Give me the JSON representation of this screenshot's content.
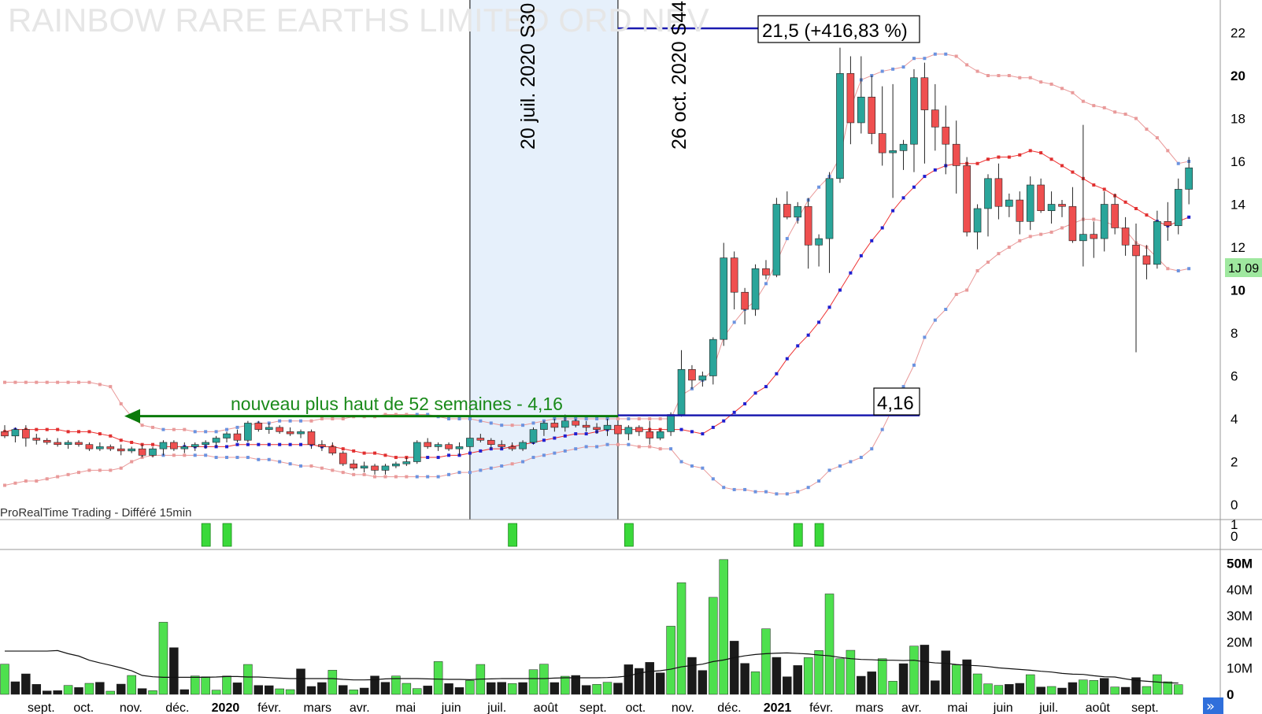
{
  "chart_data": {
    "type": "candlestick",
    "title": "RAINBOW RARE EARTHS LIMITED ORD NPV",
    "source": "ProRealTime Trading - Différé 15min",
    "price_axis": {
      "ylim": [
        0,
        23
      ],
      "ticks": [
        "22",
        "20",
        "18",
        "16",
        "14",
        "12",
        "10",
        "8",
        "6",
        "4",
        "2",
        "0"
      ],
      "bold_ticks": [
        "20",
        "10"
      ]
    },
    "last_price_tag": "1J 09",
    "volume_axis": {
      "ylim": [
        0,
        52
      ],
      "ticks": [
        "50M",
        "40M",
        "30M",
        "20M",
        "10M",
        "0"
      ]
    },
    "signal_axis": {
      "ticks": [
        "1",
        "0"
      ]
    },
    "x_labels": [
      "sept.",
      "oct.",
      "nov.",
      "déc.",
      "2020",
      "févr.",
      "mars",
      "avr.",
      "mai",
      "juin",
      "juil.",
      "août",
      "sept.",
      "oct.",
      "nov.",
      "déc.",
      "2021",
      "févr.",
      "mars",
      "avr.",
      "mai",
      "juin",
      "juil.",
      "août",
      "sept."
    ],
    "bold_x_labels": [
      "2020",
      "2021"
    ],
    "vlines": [
      {
        "label": "20 juil. 2020 S30",
        "week": 44
      },
      {
        "label": "26 oct. 2020 S44",
        "week": 58
      }
    ],
    "annotations": {
      "breakout": "nouveau plus haut de 52 semaines - 4,16",
      "level_low": "4,16",
      "level_high": "21,5 (+416,83 %)"
    },
    "candles": [
      [
        3.4,
        3.7,
        3.1,
        3.2
      ],
      [
        3.2,
        3.6,
        2.9,
        3.5
      ],
      [
        3.5,
        3.7,
        2.7,
        3.1
      ],
      [
        3.1,
        3.3,
        2.8,
        3.0
      ],
      [
        3.0,
        3.1,
        2.8,
        2.9
      ],
      [
        2.9,
        3.1,
        2.7,
        2.8
      ],
      [
        2.8,
        3.0,
        2.6,
        2.9
      ],
      [
        2.9,
        3.0,
        2.7,
        2.8
      ],
      [
        2.8,
        2.9,
        2.5,
        2.6
      ],
      [
        2.6,
        2.9,
        2.5,
        2.7
      ],
      [
        2.7,
        2.8,
        2.5,
        2.6
      ],
      [
        2.6,
        2.8,
        2.3,
        2.5
      ],
      [
        2.5,
        2.7,
        2.4,
        2.6
      ],
      [
        2.6,
        2.8,
        2.2,
        2.3
      ],
      [
        2.3,
        2.7,
        2.2,
        2.6
      ],
      [
        2.6,
        3.0,
        2.3,
        2.9
      ],
      [
        2.9,
        3.0,
        2.5,
        2.6
      ],
      [
        2.6,
        2.9,
        2.4,
        2.7
      ],
      [
        2.7,
        2.9,
        2.5,
        2.8
      ],
      [
        2.8,
        3.0,
        2.6,
        2.9
      ],
      [
        2.9,
        3.2,
        2.7,
        3.1
      ],
      [
        3.1,
        3.4,
        2.9,
        3.3
      ],
      [
        3.3,
        3.5,
        2.9,
        3.0
      ],
      [
        3.0,
        3.9,
        2.9,
        3.8
      ],
      [
        3.8,
        3.9,
        3.4,
        3.5
      ],
      [
        3.5,
        3.8,
        3.3,
        3.6
      ],
      [
        3.6,
        3.7,
        3.3,
        3.4
      ],
      [
        3.4,
        3.6,
        3.2,
        3.3
      ],
      [
        3.3,
        3.5,
        3.1,
        3.4
      ],
      [
        3.4,
        3.5,
        2.6,
        2.8
      ],
      [
        2.8,
        3.0,
        2.5,
        2.7
      ],
      [
        2.7,
        2.9,
        2.3,
        2.4
      ],
      [
        2.4,
        2.5,
        1.8,
        1.9
      ],
      [
        1.9,
        2.1,
        1.6,
        1.7
      ],
      [
        1.7,
        2.0,
        1.5,
        1.8
      ],
      [
        1.8,
        1.9,
        1.4,
        1.6
      ],
      [
        1.6,
        1.9,
        1.4,
        1.8
      ],
      [
        1.8,
        2.0,
        1.7,
        1.9
      ],
      [
        1.9,
        2.2,
        1.8,
        2.0
      ],
      [
        2.0,
        3.0,
        1.9,
        2.9
      ],
      [
        2.9,
        3.1,
        2.6,
        2.7
      ],
      [
        2.7,
        2.9,
        2.5,
        2.8
      ],
      [
        2.8,
        2.9,
        2.5,
        2.6
      ],
      [
        2.6,
        2.9,
        2.3,
        2.7
      ],
      [
        2.7,
        3.3,
        2.5,
        3.1
      ],
      [
        3.1,
        3.3,
        2.9,
        3.0
      ],
      [
        3.0,
        3.1,
        2.6,
        2.8
      ],
      [
        2.8,
        3.0,
        2.6,
        2.7
      ],
      [
        2.7,
        2.9,
        2.5,
        2.6
      ],
      [
        2.6,
        3.0,
        2.5,
        2.9
      ],
      [
        2.9,
        3.6,
        2.8,
        3.5
      ],
      [
        3.5,
        3.9,
        3.2,
        3.8
      ],
      [
        3.8,
        4.0,
        3.4,
        3.6
      ],
      [
        3.6,
        4.2,
        3.4,
        3.9
      ],
      [
        3.9,
        4.0,
        3.6,
        3.7
      ],
      [
        3.7,
        3.9,
        3.4,
        3.6
      ],
      [
        3.6,
        3.8,
        3.3,
        3.5
      ],
      [
        3.5,
        4.0,
        3.2,
        3.7
      ],
      [
        3.7,
        3.8,
        3.1,
        3.3
      ],
      [
        3.3,
        3.7,
        3.0,
        3.6
      ],
      [
        3.6,
        3.7,
        3.2,
        3.4
      ],
      [
        3.4,
        3.9,
        2.8,
        3.1
      ],
      [
        3.1,
        3.5,
        3.0,
        3.4
      ],
      [
        3.4,
        4.3,
        3.2,
        4.2
      ],
      [
        4.2,
        7.2,
        4.1,
        6.3
      ],
      [
        6.3,
        6.5,
        5.4,
        5.8
      ],
      [
        5.8,
        6.2,
        5.5,
        6.0
      ],
      [
        6.0,
        7.8,
        5.6,
        7.7
      ],
      [
        7.7,
        12.2,
        7.4,
        11.5
      ],
      [
        11.5,
        11.8,
        9.1,
        9.9
      ],
      [
        9.9,
        10.1,
        8.4,
        9.1
      ],
      [
        9.1,
        11.2,
        8.8,
        11.0
      ],
      [
        11.0,
        11.4,
        10.5,
        10.7
      ],
      [
        10.7,
        14.3,
        10.6,
        14.0
      ],
      [
        14.0,
        14.6,
        13.3,
        13.4
      ],
      [
        13.4,
        14.1,
        13.1,
        13.9
      ],
      [
        13.9,
        14.3,
        11.0,
        12.1
      ],
      [
        12.1,
        12.6,
        11.1,
        12.4
      ],
      [
        12.4,
        15.5,
        10.8,
        15.2
      ],
      [
        15.2,
        21.3,
        15.0,
        20.1
      ],
      [
        20.1,
        20.9,
        16.8,
        17.8
      ],
      [
        17.8,
        20.9,
        17.3,
        19.0
      ],
      [
        19.0,
        20.0,
        16.8,
        17.3
      ],
      [
        17.3,
        19.5,
        15.8,
        16.4
      ],
      [
        16.4,
        19.6,
        14.3,
        16.5
      ],
      [
        16.5,
        17.0,
        15.6,
        16.8
      ],
      [
        16.8,
        20.3,
        15.5,
        19.9
      ],
      [
        19.9,
        20.6,
        15.9,
        18.4
      ],
      [
        18.4,
        19.6,
        16.5,
        17.6
      ],
      [
        17.6,
        18.6,
        15.4,
        16.8
      ],
      [
        16.8,
        17.9,
        14.5,
        15.8
      ],
      [
        15.8,
        16.2,
        12.5,
        12.7
      ],
      [
        12.7,
        14.0,
        11.9,
        13.8
      ],
      [
        13.8,
        15.4,
        12.5,
        15.2
      ],
      [
        15.2,
        15.9,
        13.3,
        13.9
      ],
      [
        13.9,
        14.5,
        13.4,
        14.2
      ],
      [
        14.2,
        14.6,
        12.6,
        13.2
      ],
      [
        13.2,
        15.3,
        12.8,
        14.9
      ],
      [
        14.9,
        15.2,
        13.6,
        13.7
      ],
      [
        13.7,
        14.6,
        13.1,
        14.0
      ],
      [
        14.0,
        14.2,
        13.4,
        13.9
      ],
      [
        13.9,
        14.8,
        12.2,
        12.3
      ],
      [
        12.3,
        17.7,
        11.1,
        12.6
      ],
      [
        12.6,
        13.2,
        11.5,
        12.4
      ],
      [
        12.4,
        14.6,
        11.8,
        14.0
      ],
      [
        14.0,
        14.5,
        12.6,
        12.9
      ],
      [
        12.9,
        13.4,
        11.6,
        12.1
      ],
      [
        12.1,
        13.1,
        7.1,
        11.6
      ],
      [
        11.6,
        12.1,
        10.5,
        11.2
      ],
      [
        11.2,
        13.7,
        11.0,
        13.2
      ],
      [
        13.2,
        14.1,
        12.3,
        13.0
      ],
      [
        13.0,
        15.2,
        12.6,
        14.7
      ],
      [
        14.7,
        16.2,
        14.0,
        15.7
      ]
    ],
    "bollinger": {
      "upper": [
        5.7,
        5.7,
        5.7,
        5.7,
        5.7,
        5.7,
        5.7,
        5.7,
        5.7,
        5.6,
        5.5,
        4.7,
        4.1,
        3.7,
        3.6,
        3.5,
        3.5,
        3.5,
        3.4,
        3.4,
        3.4,
        3.5,
        3.6,
        3.7,
        3.8,
        3.8,
        3.9,
        3.9,
        3.9,
        3.9,
        4.0,
        4.0,
        4.0,
        4.1,
        4.1,
        4.1,
        4.2,
        4.2,
        4.2,
        4.2,
        4.2,
        4.1,
        4.0,
        4.0,
        4.0,
        3.9,
        3.8,
        3.7,
        3.7,
        3.7,
        3.8,
        3.9,
        4.0,
        4.0,
        4.0,
        4.0,
        4.0,
        4.0,
        4.0,
        4.0,
        4.0,
        4.0,
        4.0,
        4.0,
        5.1,
        5.4,
        5.8,
        6.3,
        7.8,
        8.5,
        9.1,
        9.5,
        10.3,
        11.3,
        12.4,
        13.3,
        14.2,
        14.8,
        15.3,
        16.2,
        18.5,
        19.8,
        20.0,
        20.2,
        20.3,
        20.4,
        20.8,
        20.8,
        21.0,
        21.0,
        20.9,
        20.5,
        20.2,
        20.0,
        20.0,
        20.0,
        19.9,
        19.9,
        19.7,
        19.6,
        19.4,
        19.2,
        18.8,
        18.6,
        18.5,
        18.3,
        18.2,
        18.0,
        17.5,
        17.1,
        16.5,
        15.9,
        16.0
      ],
      "middle": [
        3.4,
        3.5,
        3.5,
        3.5,
        3.5,
        3.5,
        3.4,
        3.4,
        3.4,
        3.3,
        3.2,
        3.0,
        2.9,
        2.8,
        2.8,
        2.7,
        2.7,
        2.7,
        2.7,
        2.7,
        2.7,
        2.7,
        2.8,
        2.8,
        2.8,
        2.8,
        2.8,
        2.8,
        2.8,
        2.8,
        2.7,
        2.7,
        2.6,
        2.5,
        2.4,
        2.4,
        2.3,
        2.2,
        2.2,
        2.2,
        2.2,
        2.2,
        2.3,
        2.3,
        2.4,
        2.5,
        2.6,
        2.6,
        2.7,
        2.8,
        2.9,
        3.0,
        3.1,
        3.2,
        3.3,
        3.3,
        3.4,
        3.5,
        3.5,
        3.5,
        3.5,
        3.5,
        3.5,
        3.5,
        3.5,
        3.4,
        3.3,
        3.6,
        3.9,
        4.3,
        4.7,
        5.2,
        5.5,
        6.1,
        6.8,
        7.4,
        7.9,
        8.5,
        9.2,
        10.0,
        10.8,
        11.6,
        12.3,
        12.9,
        13.7,
        14.3,
        14.8,
        15.3,
        15.6,
        15.8,
        15.9,
        15.9,
        15.9,
        16.1,
        16.2,
        16.2,
        16.3,
        16.5,
        16.4,
        16.1,
        15.8,
        15.5,
        15.2,
        14.9,
        14.7,
        14.4,
        14.1,
        13.8,
        13.5,
        13.2,
        13.0,
        13.2,
        13.4
      ],
      "lower": [
        0.9,
        1.0,
        1.1,
        1.1,
        1.2,
        1.3,
        1.4,
        1.5,
        1.6,
        1.6,
        1.6,
        1.7,
        2.0,
        2.2,
        2.3,
        2.3,
        2.3,
        2.3,
        2.3,
        2.3,
        2.2,
        2.2,
        2.2,
        2.2,
        2.1,
        2.1,
        2.0,
        1.9,
        1.8,
        1.8,
        1.7,
        1.6,
        1.5,
        1.4,
        1.4,
        1.3,
        1.3,
        1.3,
        1.3,
        1.3,
        1.3,
        1.3,
        1.4,
        1.5,
        1.5,
        1.6,
        1.7,
        1.8,
        1.9,
        2.0,
        2.2,
        2.3,
        2.4,
        2.5,
        2.6,
        2.7,
        2.7,
        2.8,
        2.8,
        2.8,
        2.7,
        2.7,
        2.6,
        2.6,
        2.0,
        1.8,
        1.7,
        1.2,
        0.8,
        0.7,
        0.7,
        0.6,
        0.6,
        0.5,
        0.5,
        0.6,
        0.8,
        1.1,
        1.6,
        1.8,
        2.0,
        2.2,
        2.6,
        3.5,
        4.5,
        5.5,
        6.5,
        7.8,
        8.6,
        9.1,
        9.8,
        10.0,
        10.9,
        11.3,
        11.7,
        12.0,
        12.3,
        12.5,
        12.6,
        12.7,
        12.9,
        13.1,
        13.3,
        13.3,
        13.2,
        13.0,
        12.8,
        12.2,
        12.0,
        11.5,
        11.0,
        10.9,
        11.0
      ]
    },
    "signals": [
      19,
      21,
      48,
      59,
      75,
      77
    ],
    "volume": [
      [
        11.5,
        1
      ],
      [
        4.8,
        0
      ],
      [
        7.8,
        0
      ],
      [
        3.8,
        0
      ],
      [
        1.3,
        0
      ],
      [
        1.4,
        0
      ],
      [
        3.4,
        1
      ],
      [
        2.6,
        0
      ],
      [
        4.2,
        1
      ],
      [
        4.6,
        0
      ],
      [
        1.2,
        1
      ],
      [
        3.9,
        0
      ],
      [
        7.2,
        1
      ],
      [
        2.2,
        0
      ],
      [
        1.4,
        1
      ],
      [
        27.5,
        1
      ],
      [
        17.8,
        0
      ],
      [
        1.8,
        0
      ],
      [
        7.0,
        1
      ],
      [
        6.7,
        1
      ],
      [
        1.6,
        1
      ],
      [
        7.0,
        1
      ],
      [
        4.4,
        0
      ],
      [
        11.4,
        1
      ],
      [
        3.4,
        0
      ],
      [
        3.3,
        0
      ],
      [
        2.1,
        1
      ],
      [
        1.8,
        1
      ],
      [
        9.7,
        0
      ],
      [
        3.0,
        0
      ],
      [
        4.5,
        0
      ],
      [
        9.2,
        1
      ],
      [
        3.4,
        0
      ],
      [
        1.7,
        1
      ],
      [
        2.4,
        0
      ],
      [
        7.0,
        0
      ],
      [
        4.6,
        0
      ],
      [
        7.0,
        1
      ],
      [
        4.2,
        1
      ],
      [
        2.2,
        1
      ],
      [
        3.2,
        0
      ],
      [
        12.5,
        1
      ],
      [
        4.1,
        0
      ],
      [
        2.6,
        0
      ],
      [
        5.3,
        1
      ],
      [
        11.4,
        1
      ],
      [
        4.5,
        0
      ],
      [
        4.6,
        0
      ],
      [
        4.1,
        1
      ],
      [
        4.5,
        0
      ],
      [
        9.4,
        1
      ],
      [
        11.5,
        1
      ],
      [
        4.5,
        0
      ],
      [
        6.9,
        1
      ],
      [
        7.2,
        0
      ],
      [
        3.4,
        0
      ],
      [
        3.8,
        1
      ],
      [
        4.6,
        1
      ],
      [
        4.3,
        0
      ],
      [
        11.3,
        0
      ],
      [
        9.9,
        0
      ],
      [
        12.2,
        0
      ],
      [
        8.2,
        0
      ],
      [
        26.0,
        1
      ],
      [
        42.6,
        1
      ],
      [
        14.1,
        0
      ],
      [
        9.1,
        0
      ],
      [
        37.0,
        1
      ],
      [
        51.4,
        1
      ],
      [
        20.3,
        0
      ],
      [
        11.8,
        0
      ],
      [
        8.6,
        1
      ],
      [
        25.0,
        1
      ],
      [
        14.1,
        0
      ],
      [
        6.7,
        0
      ],
      [
        11.0,
        0
      ],
      [
        14.0,
        1
      ],
      [
        16.7,
        1
      ],
      [
        38.3,
        1
      ],
      [
        13.6,
        1
      ],
      [
        16.8,
        1
      ],
      [
        6.9,
        0
      ],
      [
        8.6,
        0
      ],
      [
        13.6,
        1
      ],
      [
        5.0,
        1
      ],
      [
        11.7,
        0
      ],
      [
        18.4,
        1
      ],
      [
        18.8,
        0
      ],
      [
        5.2,
        0
      ],
      [
        16.6,
        0
      ],
      [
        11.2,
        1
      ],
      [
        13.2,
        0
      ],
      [
        7.8,
        1
      ],
      [
        4.0,
        1
      ],
      [
        3.4,
        1
      ],
      [
        3.8,
        0
      ],
      [
        4.2,
        0
      ],
      [
        7.5,
        1
      ],
      [
        2.8,
        0
      ],
      [
        3.0,
        1
      ],
      [
        2.4,
        0
      ],
      [
        4.5,
        0
      ],
      [
        5.5,
        1
      ],
      [
        5.3,
        1
      ],
      [
        6.1,
        0
      ],
      [
        2.8,
        1
      ],
      [
        2.7,
        0
      ],
      [
        6.4,
        0
      ],
      [
        3.0,
        1
      ],
      [
        7.5,
        1
      ],
      [
        4.8,
        1
      ],
      [
        3.7,
        1
      ]
    ],
    "volume_ma": [
      16.5,
      16.5,
      16.5,
      16.5,
      16.5,
      16.7,
      15.5,
      14.6,
      13.0,
      12.0,
      11.1,
      10.1,
      9.0,
      7.2,
      6.7,
      6.5,
      6.5,
      6.5,
      6.5,
      6.5,
      6.6,
      6.8,
      6.8,
      6.6,
      6.6,
      6.4,
      6.2,
      6.0,
      6.0,
      6.0,
      6.0,
      6.0,
      5.7,
      5.5,
      5.5,
      5.6,
      5.9,
      6.0,
      6.0,
      6.0,
      5.9,
      5.8,
      5.7,
      5.7,
      5.6,
      5.8,
      5.9,
      6.0,
      6.0,
      6.0,
      6.0,
      6.0,
      6.2,
      6.3,
      6.3,
      6.3,
      6.3,
      6.4,
      6.6,
      7.0,
      8.1,
      8.7,
      9.0,
      9.6,
      10.5,
      11.0,
      11.5,
      12.5,
      13.1,
      14.0,
      14.7,
      15.2,
      15.5,
      15.7,
      15.8,
      15.6,
      15.4,
      15.0,
      14.7,
      14.1,
      13.6,
      13.3,
      13.2,
      13.0,
      13.0,
      12.9,
      13.0,
      12.4,
      12.0,
      11.8,
      11.4,
      11.1,
      10.9,
      10.6,
      10.1,
      9.8,
      9.5,
      9.2,
      8.8,
      8.5,
      8.0,
      7.7,
      7.6,
      7.1,
      6.7,
      6.6,
      5.9,
      5.3,
      5.0,
      4.7,
      4.4,
      4.3
    ]
  }
}
